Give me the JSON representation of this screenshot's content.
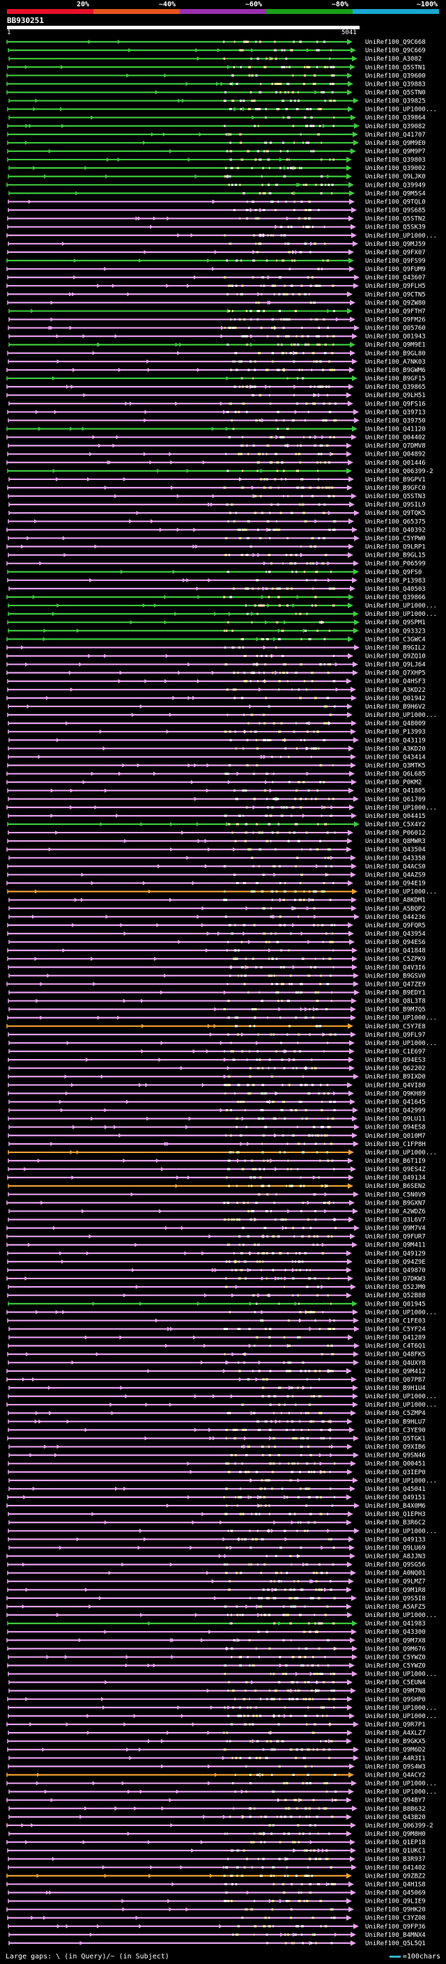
{
  "scale": {
    "labels": [
      {
        "text": "20%",
        "at": 0.2
      },
      {
        "text": "~40%",
        "at": 0.4
      },
      {
        "text": "~60%",
        "at": 0.6
      },
      {
        "text": "~80%",
        "at": 0.8
      },
      {
        "text": "~100%",
        "at": 1.0
      }
    ],
    "colors": [
      "#e8102a",
      "#e8541a",
      "#9b2fae",
      "#18a018",
      "#18a8d0"
    ]
  },
  "query": {
    "id": "BB930251",
    "start": "1",
    "end": "5041"
  },
  "colors": {
    "low": "#e6a1ec",
    "low_stroke": "#c050d0",
    "mid": "#3ec83e",
    "orange": "#f0a030",
    "mark": "#fff3a0"
  },
  "hits": [
    {
      "label": "UniRef100_Q9C668",
      "color": "mid"
    },
    {
      "label": "UniRef100_Q9C669",
      "color": "mid"
    },
    {
      "label": "UniRef100_A3082",
      "color": "mid"
    },
    {
      "label": "UniRef100_Q5STN1",
      "color": "mid"
    },
    {
      "label": "UniRef100_Q39600",
      "color": "mid"
    },
    {
      "label": "UniRef100_Q39883",
      "color": "mid"
    },
    {
      "label": "UniRef100_Q5STN0",
      "color": "mid"
    },
    {
      "label": "UniRef100_Q39825",
      "color": "mid"
    },
    {
      "label": "UniRef100_UP1000...",
      "color": "mid"
    },
    {
      "label": "UniRef100_Q39864",
      "color": "mid"
    },
    {
      "label": "UniRef100_Q39082",
      "color": "mid"
    },
    {
      "label": "UniRef100_Q41707",
      "color": "mid"
    },
    {
      "label": "UniRef100_Q9M9E0",
      "color": "mid"
    },
    {
      "label": "UniRef100_Q9M9P7",
      "color": "mid"
    },
    {
      "label": "UniRef100_Q39803",
      "color": "mid"
    },
    {
      "label": "UniRef100_Q39002",
      "color": "mid"
    },
    {
      "label": "UniRef100_Q9LJK0",
      "color": "mid"
    },
    {
      "label": "UniRef100_Q39949",
      "color": "mid"
    },
    {
      "label": "UniRef100_Q9M5S4",
      "color": "mid"
    },
    {
      "label": "UniRef100_Q9TQL0",
      "color": "low"
    },
    {
      "label": "UniRef100_Q9S685",
      "color": "low"
    },
    {
      "label": "UniRef100_Q5STN2",
      "color": "low"
    },
    {
      "label": "UniRef100_Q5SK39",
      "color": "low"
    },
    {
      "label": "UniRef100_UP1000...",
      "color": "low"
    },
    {
      "label": "UniRef100_Q9MJ59",
      "color": "low"
    },
    {
      "label": "UniRef100_Q9FX07",
      "color": "low"
    },
    {
      "label": "UniRef100_Q9FS99",
      "color": "mid"
    },
    {
      "label": "UniRef100_Q9FUM9",
      "color": "low"
    },
    {
      "label": "UniRef100_Q43607",
      "color": "low"
    },
    {
      "label": "UniRef100_Q9FLH5",
      "color": "low"
    },
    {
      "label": "UniRef100_Q9CTN5",
      "color": "low"
    },
    {
      "label": "UniRef100_Q9ZW80",
      "color": "low"
    },
    {
      "label": "UniRef100_Q9FTH7",
      "color": "mid"
    },
    {
      "label": "UniRef100_Q9FM26",
      "color": "low"
    },
    {
      "label": "UniRef100_Q05760",
      "color": "low"
    },
    {
      "label": "UniRef100_Q01943",
      "color": "low"
    },
    {
      "label": "UniRef100_Q9M9E1",
      "color": "mid"
    },
    {
      "label": "UniRef100_B9GL80",
      "color": "low"
    },
    {
      "label": "UniRef100_A7NK03",
      "color": "low"
    },
    {
      "label": "UniRef100_B9GWM6",
      "color": "low"
    },
    {
      "label": "UniRef100_B9GF15",
      "color": "mid"
    },
    {
      "label": "UniRef100_Q39865",
      "color": "low"
    },
    {
      "label": "UniRef100_Q9LH51",
      "color": "low"
    },
    {
      "label": "UniRef100_Q9FS16",
      "color": "low"
    },
    {
      "label": "UniRef100_Q39713",
      "color": "low"
    },
    {
      "label": "UniRef100_Q39750",
      "color": "low"
    },
    {
      "label": "UniRef100_Q41120",
      "color": "mid"
    },
    {
      "label": "UniRef100_Q04402",
      "color": "low"
    },
    {
      "label": "UniRef100_Q7DMV8",
      "color": "low"
    },
    {
      "label": "UniRef100_Q04892",
      "color": "low"
    },
    {
      "label": "UniRef100_Q01446",
      "color": "low"
    },
    {
      "label": "UniRef100_Q06399-2",
      "color": "mid"
    },
    {
      "label": "UniRef100_B9GPV1",
      "color": "low"
    },
    {
      "label": "UniRef100_B9GFC0",
      "color": "low"
    },
    {
      "label": "UniRef100_Q5STN3",
      "color": "low"
    },
    {
      "label": "UniRef100_Q9SIL9",
      "color": "low"
    },
    {
      "label": "UniRef100_Q9TQK5",
      "color": "low"
    },
    {
      "label": "UniRef100_Q65375",
      "color": "low"
    },
    {
      "label": "UniRef100_Q40392",
      "color": "low"
    },
    {
      "label": "UniRef100_C5YPW0",
      "color": "low"
    },
    {
      "label": "UniRef100_Q9LRP1",
      "color": "low"
    },
    {
      "label": "UniRef100_B9GL15",
      "color": "low"
    },
    {
      "label": "UniRef100_P06599",
      "color": "low"
    },
    {
      "label": "UniRef100_Q9FS0",
      "color": "mid"
    },
    {
      "label": "UniRef100_P13983",
      "color": "low"
    },
    {
      "label": "UniRef100_Q40503",
      "color": "low"
    },
    {
      "label": "UniRef100_Q39866",
      "color": "mid"
    },
    {
      "label": "UniRef100_UP1000...",
      "color": "mid"
    },
    {
      "label": "UniRef100_UP1000...",
      "color": "mid"
    },
    {
      "label": "UniRef100_Q9SPM1",
      "color": "mid"
    },
    {
      "label": "UniRef100_Q93323",
      "color": "mid"
    },
    {
      "label": "UniRef100_C3GWC4",
      "color": "mid"
    },
    {
      "label": "UniRef100_B9GIL2",
      "color": "low"
    },
    {
      "label": "UniRef100_Q9ZQ10",
      "color": "low"
    },
    {
      "label": "UniRef100_Q9LJ64",
      "color": "low"
    },
    {
      "label": "UniRef100_Q7XHP5",
      "color": "low"
    },
    {
      "label": "UniRef100_Q4HSF3",
      "color": "low"
    },
    {
      "label": "UniRef100_A3KD22",
      "color": "low"
    },
    {
      "label": "UniRef100_Q01942",
      "color": "low"
    },
    {
      "label": "UniRef100_B9H6V2",
      "color": "low"
    },
    {
      "label": "UniRef100_UP1000...",
      "color": "low"
    },
    {
      "label": "UniRef100_Q48009",
      "color": "low"
    },
    {
      "label": "UniRef100_P13993",
      "color": "low"
    },
    {
      "label": "UniRef100_Q43119",
      "color": "low"
    },
    {
      "label": "UniRef100_A3KD20",
      "color": "low"
    },
    {
      "label": "UniRef100_Q43414",
      "color": "low"
    },
    {
      "label": "UniRef100_Q3MTK5",
      "color": "low"
    },
    {
      "label": "UniRef100_Q6L685",
      "color": "low"
    },
    {
      "label": "UniRef100_P0KM2",
      "color": "low"
    },
    {
      "label": "UniRef100_Q41805",
      "color": "low"
    },
    {
      "label": "UniRef100_Q61709",
      "color": "low"
    },
    {
      "label": "UniRef100_UP1000...",
      "color": "low"
    },
    {
      "label": "UniRef100_Q04415",
      "color": "low"
    },
    {
      "label": "UniRef100_C5X4Y2",
      "color": "mid"
    },
    {
      "label": "UniRef100_P06012",
      "color": "low"
    },
    {
      "label": "UniRef100_Q8MWR3",
      "color": "low"
    },
    {
      "label": "UniRef100_Q43504",
      "color": "low"
    },
    {
      "label": "UniRef100_Q43358",
      "color": "low"
    },
    {
      "label": "UniRef100_Q4ACS0",
      "color": "low"
    },
    {
      "label": "UniRef100_Q4AZS9",
      "color": "low"
    },
    {
      "label": "UniRef100_Q94E19",
      "color": "low"
    },
    {
      "label": "UniRef100_UP1000...",
      "color": "orange"
    },
    {
      "label": "UniRef100_A8KDM1",
      "color": "low"
    },
    {
      "label": "UniRef100_A5BQP2",
      "color": "low"
    },
    {
      "label": "UniRef100_Q44236",
      "color": "low"
    },
    {
      "label": "UniRef100_Q9FQR5",
      "color": "low"
    },
    {
      "label": "UniRef100_Q43954",
      "color": "low"
    },
    {
      "label": "UniRef100_Q94ES6",
      "color": "low"
    },
    {
      "label": "UniRef100_Q41848",
      "color": "low"
    },
    {
      "label": "UniRef100_C5ZPK9",
      "color": "low"
    },
    {
      "label": "UniRef100_Q4V3I6",
      "color": "low"
    },
    {
      "label": "UniRef100_B9GSV0",
      "color": "low"
    },
    {
      "label": "UniRef100_Q47ZE9",
      "color": "low"
    },
    {
      "label": "UniRef100_B9EDY1",
      "color": "low"
    },
    {
      "label": "UniRef100_Q8L3T8",
      "color": "low"
    },
    {
      "label": "UniRef100_B9M7Q5",
      "color": "low"
    },
    {
      "label": "UniRef100_UP1000...",
      "color": "low"
    },
    {
      "label": "UniRef100_C5Y7E8",
      "color": "orange"
    },
    {
      "label": "UniRef100_Q9FL97",
      "color": "low"
    },
    {
      "label": "UniRef100_UP1000...",
      "color": "low"
    },
    {
      "label": "UniRef100_C1E697",
      "color": "low"
    },
    {
      "label": "UniRef100_Q94ES3",
      "color": "low"
    },
    {
      "label": "UniRef100_Q62202",
      "color": "low"
    },
    {
      "label": "UniRef100_B9IXD0",
      "color": "low"
    },
    {
      "label": "UniRef100_Q4VI80",
      "color": "low"
    },
    {
      "label": "UniRef100_Q9KH89",
      "color": "low"
    },
    {
      "label": "UniRef100_Q41645",
      "color": "low"
    },
    {
      "label": "UniRef100_Q42999",
      "color": "low"
    },
    {
      "label": "UniRef100_Q9LU11",
      "color": "low"
    },
    {
      "label": "UniRef100_Q94ES8",
      "color": "low"
    },
    {
      "label": "UniRef100_Q010M7",
      "color": "low"
    },
    {
      "label": "UniRef100_C1FP8H",
      "color": "low"
    },
    {
      "label": "UniRef100_UP1000...",
      "color": "orange"
    },
    {
      "label": "UniRef100_B6T1I9",
      "color": "low"
    },
    {
      "label": "UniRef100_Q9ES4Z",
      "color": "low"
    },
    {
      "label": "UniRef100_Q49134",
      "color": "low"
    },
    {
      "label": "UniRef100_B6SEN2",
      "color": "orange"
    },
    {
      "label": "UniRef100_C5N0V9",
      "color": "low"
    },
    {
      "label": "UniRef100_B9GXN7",
      "color": "low"
    },
    {
      "label": "UniRef100_A2WDZ6",
      "color": "low"
    },
    {
      "label": "UniRef100_Q3L6V7",
      "color": "low"
    },
    {
      "label": "UniRef100_Q9M7V4",
      "color": "low"
    },
    {
      "label": "UniRef100_Q9FUR7",
      "color": "low"
    },
    {
      "label": "UniRef100_Q9M411",
      "color": "low"
    },
    {
      "label": "UniRef100_Q49129",
      "color": "low"
    },
    {
      "label": "UniRef100_Q94Z9E",
      "color": "low"
    },
    {
      "label": "UniRef100_Q49870",
      "color": "low"
    },
    {
      "label": "UniRef100_Q7DKW3",
      "color": "low"
    },
    {
      "label": "UniRef100_Q52JM0",
      "color": "low"
    },
    {
      "label": "UniRef100_Q52B88",
      "color": "low"
    },
    {
      "label": "UniRef100_Q01945",
      "color": "mid"
    },
    {
      "label": "UniRef100_UP1000...",
      "color": "low"
    },
    {
      "label": "UniRef100_C1FE03",
      "color": "low"
    },
    {
      "label": "UniRef100_C5YF24",
      "color": "low"
    },
    {
      "label": "UniRef100_Q41289",
      "color": "low"
    },
    {
      "label": "UniRef100_C4T6Q1",
      "color": "low"
    },
    {
      "label": "UniRef100_Q48FK5",
      "color": "low"
    },
    {
      "label": "UniRef100_Q4UXY8",
      "color": "low"
    },
    {
      "label": "UniRef100_Q9M412",
      "color": "low"
    },
    {
      "label": "UniRef100_Q07PB7",
      "color": "low"
    },
    {
      "label": "UniRef100_B9H1U4",
      "color": "low"
    },
    {
      "label": "UniRef100_UP1000...",
      "color": "low"
    },
    {
      "label": "UniRef100_UP1000...",
      "color": "low"
    },
    {
      "label": "UniRef100_C5ZMP4",
      "color": "low"
    },
    {
      "label": "UniRef100_B9HLU7",
      "color": "low"
    },
    {
      "label": "UniRef100_C3YE90",
      "color": "low"
    },
    {
      "label": "UniRef100_Q5TGK1",
      "color": "low"
    },
    {
      "label": "UniRef100_Q9XIB6",
      "color": "low"
    },
    {
      "label": "UniRef100_Q9SN46",
      "color": "low"
    },
    {
      "label": "UniRef100_Q00451",
      "color": "low"
    },
    {
      "label": "UniRef100_Q3IEP0",
      "color": "low"
    },
    {
      "label": "UniRef100_UP1000...",
      "color": "low"
    },
    {
      "label": "UniRef100_Q45041",
      "color": "low"
    },
    {
      "label": "UniRef100_Q49151",
      "color": "low"
    },
    {
      "label": "UniRef100_B4X0M6",
      "color": "low"
    },
    {
      "label": "UniRef100_Q1EPH3",
      "color": "low"
    },
    {
      "label": "UniRef100_B3R6C2",
      "color": "low"
    },
    {
      "label": "UniRef100_UP1000...",
      "color": "low"
    },
    {
      "label": "UniRef100_Q49133",
      "color": "low"
    },
    {
      "label": "UniRef100_Q9LU69",
      "color": "low"
    },
    {
      "label": "UniRef100_A8JJN3",
      "color": "low"
    },
    {
      "label": "UniRef100_Q9SG56",
      "color": "low"
    },
    {
      "label": "UniRef100_A0NQ01",
      "color": "low"
    },
    {
      "label": "UniRef100_Q9LMZ7",
      "color": "low"
    },
    {
      "label": "UniRef100_Q9M1R8",
      "color": "low"
    },
    {
      "label": "UniRef100_Q9S5I8",
      "color": "low"
    },
    {
      "label": "UniRef100_A5AFZ5",
      "color": "low"
    },
    {
      "label": "UniRef100_UP1000...",
      "color": "low"
    },
    {
      "label": "UniRef100_Q41983",
      "color": "mid"
    },
    {
      "label": "UniRef100_Q43300",
      "color": "low"
    },
    {
      "label": "UniRef100_Q9M7X8",
      "color": "low"
    },
    {
      "label": "UniRef100_Q9M676",
      "color": "low"
    },
    {
      "label": "UniRef100_C5YWZ0",
      "color": "low"
    },
    {
      "label": "UniRef100_C5YWZ0",
      "color": "low"
    },
    {
      "label": "UniRef100_UP1000...",
      "color": "low"
    },
    {
      "label": "UniRef100_C5EUN4",
      "color": "low"
    },
    {
      "label": "UniRef100_Q9M7N8",
      "color": "low"
    },
    {
      "label": "UniRef100_Q9SHP0",
      "color": "low"
    },
    {
      "label": "UniRef100_UP1000...",
      "color": "low"
    },
    {
      "label": "UniRef100_UP1000...",
      "color": "low"
    },
    {
      "label": "UniRef100_Q9R7P1",
      "color": "low"
    },
    {
      "label": "UniRef100_A4XLZ7",
      "color": "low"
    },
    {
      "label": "UniRef100_B9GKX5",
      "color": "low"
    },
    {
      "label": "UniRef100_Q9M6D2",
      "color": "low"
    },
    {
      "label": "UniRef100_A4R3I1",
      "color": "low"
    },
    {
      "label": "UniRef100_Q9S4W3",
      "color": "low"
    },
    {
      "label": "UniRef100_Q4ACY2",
      "color": "orange"
    },
    {
      "label": "UniRef100_UP1000...",
      "color": "low"
    },
    {
      "label": "UniRef100_UP1000...",
      "color": "low"
    },
    {
      "label": "UniRef100_Q94BY7",
      "color": "low"
    },
    {
      "label": "UniRef100_B8B632",
      "color": "low"
    },
    {
      "label": "UniRef100_Q43B20",
      "color": "low"
    },
    {
      "label": "UniRef100_Q06399-2",
      "color": "low"
    },
    {
      "label": "UniRef100_Q9M8H0",
      "color": "low"
    },
    {
      "label": "UniRef100_Q1EP18",
      "color": "low"
    },
    {
      "label": "UniRef100_Q1UKC1",
      "color": "low"
    },
    {
      "label": "UniRef100_B3R937",
      "color": "low"
    },
    {
      "label": "UniRef100_Q41402",
      "color": "low"
    },
    {
      "label": "UniRef100_Q9ZBZ2",
      "color": "orange"
    },
    {
      "label": "UniRef100_Q4H1S8",
      "color": "low"
    },
    {
      "label": "UniRef100_Q45069",
      "color": "low"
    },
    {
      "label": "UniRef100_Q9LIE9",
      "color": "low"
    },
    {
      "label": "UniRef100_Q9HK20",
      "color": "low"
    },
    {
      "label": "UniRef100_C3YZ08",
      "color": "low"
    },
    {
      "label": "UniRef100_Q9FP36",
      "color": "low"
    },
    {
      "label": "UniRef100_B4MNX4",
      "color": "low"
    },
    {
      "label": "UniRef100_Q5L5Q1",
      "color": "low"
    }
  ],
  "legend": {
    "left": "Large gaps: \\ (in Query)/~ (in Subject)",
    "right": "=100chars"
  }
}
